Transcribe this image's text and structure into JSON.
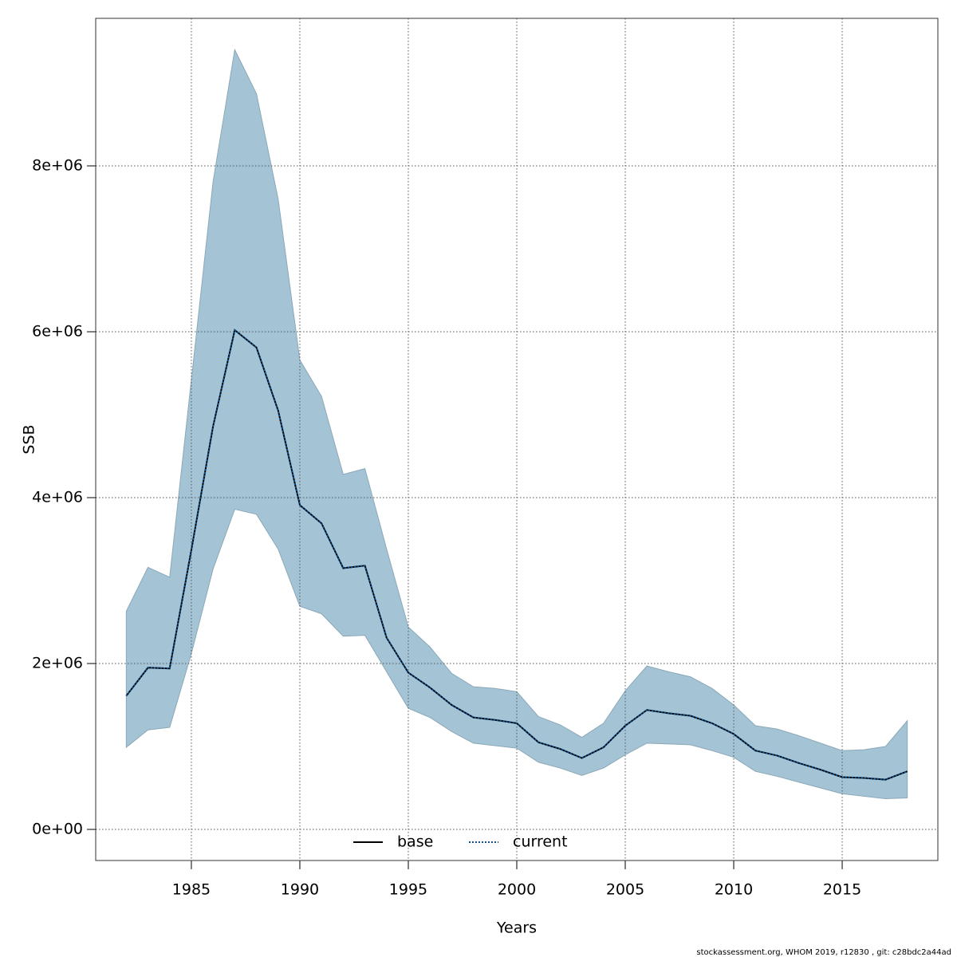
{
  "chart_data": {
    "type": "line",
    "xlabel": "Years",
    "ylabel": "SSB",
    "footnote": "stockassessment.org, WHOM  2019, r12830 , git: c28bdc2a44ad",
    "x": [
      1982,
      1983,
      1984,
      1985,
      1986,
      1987,
      1988,
      1989,
      1990,
      1991,
      1992,
      1993,
      1994,
      1995,
      1996,
      1997,
      1998,
      1999,
      2000,
      2001,
      2002,
      2003,
      2004,
      2005,
      2006,
      2007,
      2008,
      2009,
      2010,
      2011,
      2012,
      2013,
      2014,
      2015,
      2016,
      2017,
      2018
    ],
    "series": [
      {
        "name": "base",
        "color": "#000000",
        "dash": false,
        "values": [
          1610000,
          1950000,
          1940000,
          3370000,
          4860000,
          6020000,
          5810000,
          5050000,
          3910000,
          3690000,
          3150000,
          3180000,
          2310000,
          1890000,
          1710000,
          1500000,
          1350000,
          1320000,
          1280000,
          1050000,
          970000,
          860000,
          990000,
          1250000,
          1440000,
          1400000,
          1370000,
          1280000,
          1150000,
          950000,
          890000,
          800000,
          720000,
          630000,
          620000,
          600000,
          700000
        ]
      },
      {
        "name": "current",
        "color": "#0b5394",
        "dash": true,
        "values": [
          1610000,
          1950000,
          1940000,
          3370000,
          4860000,
          6020000,
          5810000,
          5050000,
          3910000,
          3690000,
          3150000,
          3180000,
          2310000,
          1890000,
          1710000,
          1500000,
          1350000,
          1320000,
          1280000,
          1050000,
          970000,
          860000,
          990000,
          1250000,
          1440000,
          1400000,
          1370000,
          1280000,
          1150000,
          950000,
          890000,
          800000,
          720000,
          630000,
          620000,
          600000,
          700000
        ]
      }
    ],
    "band": {
      "color": "#a4c4d5",
      "upper": [
        2630000,
        3160000,
        3040000,
        5420000,
        7810000,
        9400000,
        8870000,
        7600000,
        5660000,
        5220000,
        4280000,
        4350000,
        3380000,
        2440000,
        2200000,
        1880000,
        1720000,
        1700000,
        1660000,
        1360000,
        1260000,
        1110000,
        1280000,
        1670000,
        1970000,
        1900000,
        1840000,
        1700000,
        1500000,
        1250000,
        1210000,
        1130000,
        1040000,
        950000,
        960000,
        1000000,
        1310000
      ],
      "lower": [
        990000,
        1200000,
        1230000,
        2120000,
        3140000,
        3860000,
        3800000,
        3380000,
        2690000,
        2600000,
        2330000,
        2340000,
        1900000,
        1460000,
        1350000,
        1180000,
        1040000,
        1010000,
        980000,
        810000,
        740000,
        650000,
        740000,
        900000,
        1040000,
        1030000,
        1020000,
        950000,
        870000,
        700000,
        640000,
        570000,
        500000,
        430000,
        400000,
        370000,
        380000
      ]
    },
    "xlim": [
      1980.59,
      2019.41
    ],
    "ylim": [
      -375000,
      9779000
    ],
    "xticks": [
      1985,
      1990,
      1995,
      2000,
      2005,
      2010,
      2015
    ],
    "yticks": [
      {
        "value": 0,
        "label": "0e+00"
      },
      {
        "value": 2000000,
        "label": "2e+06"
      },
      {
        "value": 4000000,
        "label": "4e+06"
      },
      {
        "value": 6000000,
        "label": "6e+06"
      },
      {
        "value": 8000000,
        "label": "8e+06"
      }
    ],
    "grid": true
  }
}
